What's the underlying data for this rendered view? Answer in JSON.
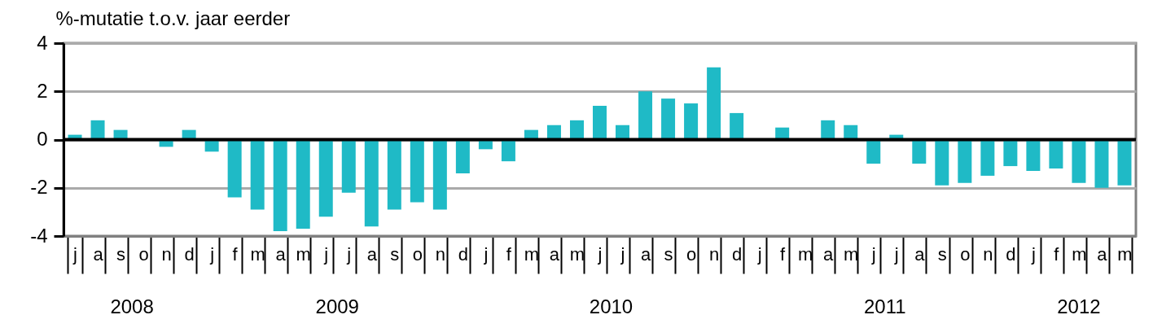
{
  "chart_data": {
    "type": "bar",
    "ylabel": "%-mutatie t.o.v. jaar eerder",
    "categories": [
      "j",
      "a",
      "s",
      "o",
      "n",
      "d",
      "j",
      "f",
      "m",
      "a",
      "m",
      "j",
      "j",
      "a",
      "s",
      "o",
      "n",
      "d",
      "j",
      "f",
      "m",
      "a",
      "m",
      "j",
      "j",
      "a",
      "s",
      "o",
      "n",
      "d",
      "j",
      "f",
      "m",
      "a",
      "m",
      "j",
      "j",
      "a",
      "s",
      "o",
      "n",
      "d",
      "j",
      "f",
      "m",
      "a",
      "m"
    ],
    "values": [
      0.2,
      0.8,
      0.4,
      0,
      -0.3,
      0.4,
      -0.5,
      -2.4,
      -2.9,
      -3.8,
      -3.7,
      -3.2,
      -2.2,
      -3.6,
      -2.9,
      -2.6,
      -2.9,
      -1.4,
      -0.4,
      -0.9,
      0.4,
      0.6,
      0.8,
      1.4,
      0.6,
      2.0,
      1.7,
      1.5,
      3.0,
      1.1,
      0,
      0.5,
      0,
      0.8,
      0.6,
      -1.0,
      0.2,
      -1.0,
      -1.9,
      -1.8,
      -1.5,
      -1.1,
      -1.3,
      -1.2,
      -1.8,
      -2.0,
      -1.9
    ],
    "color": "#1fbac6",
    "ylim": [
      -4,
      4
    ],
    "yticks": [
      -4,
      -2,
      0,
      2,
      4
    ],
    "grid": "y",
    "ref_lines": [
      {
        "axis": "y",
        "value": 0,
        "color": "#000000"
      }
    ],
    "annotations": [
      "2008",
      "2009",
      "2010",
      "2011",
      "2012"
    ]
  }
}
